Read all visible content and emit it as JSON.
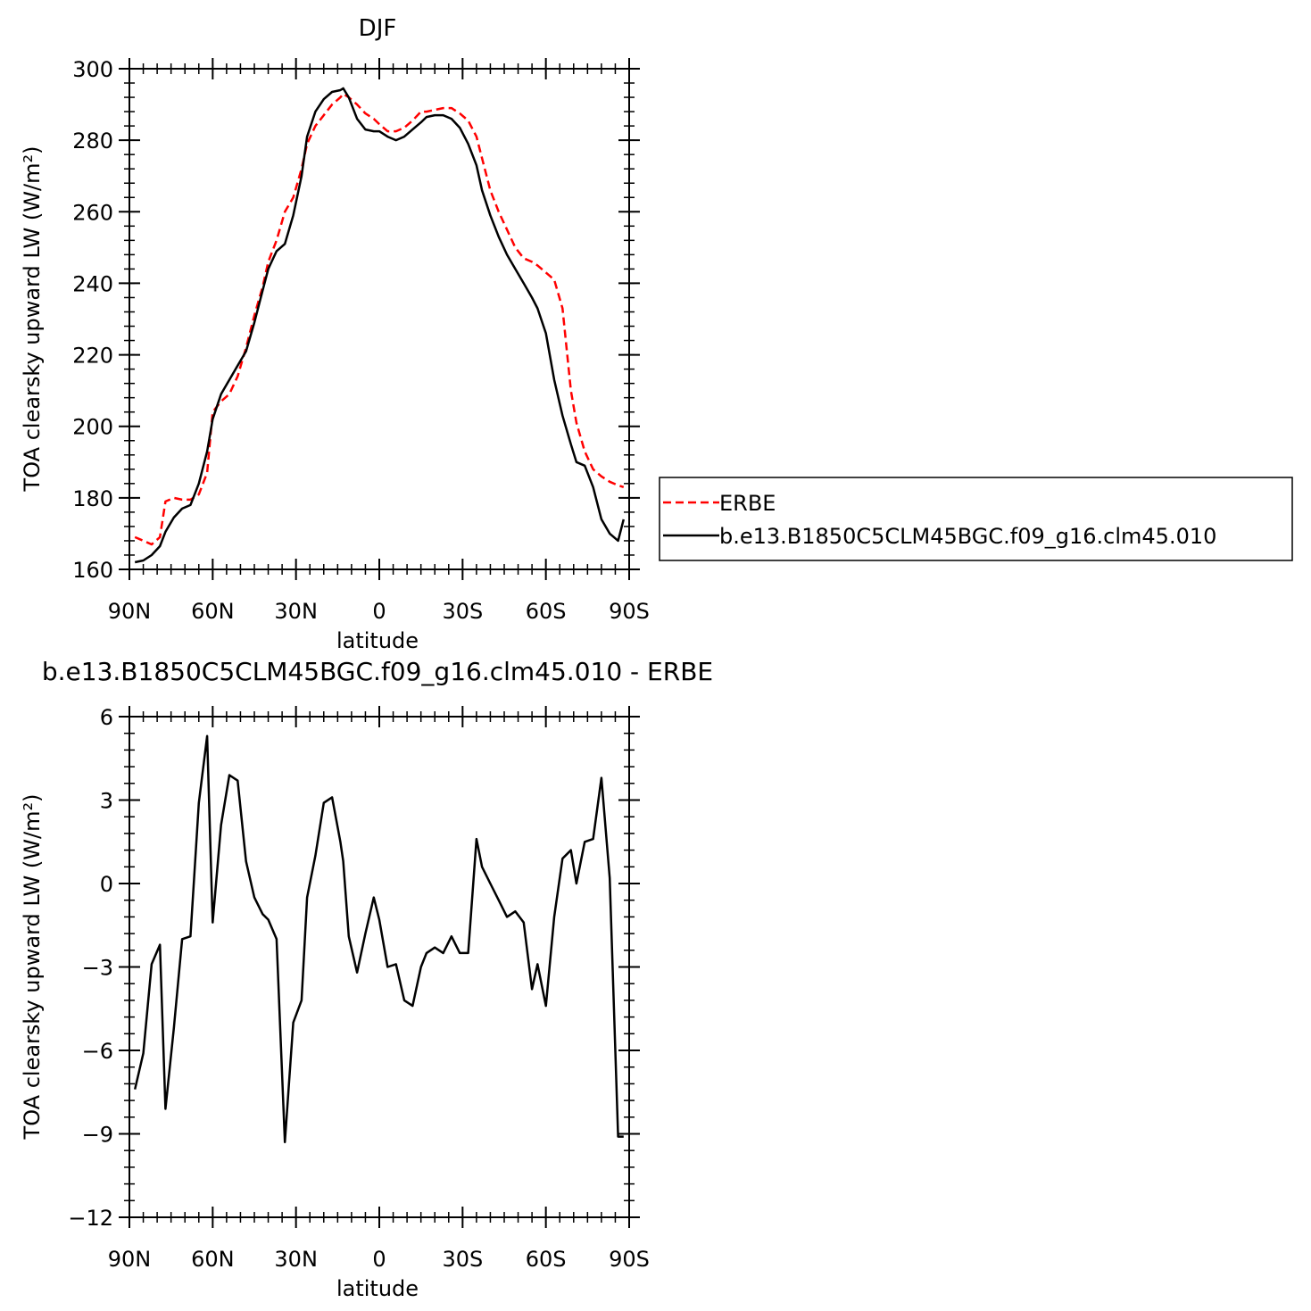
{
  "chart_data": [
    {
      "type": "line",
      "title": "DJF",
      "xlabel": "latitude",
      "ylabel": "TOA clearsky upward LW (W/m²)",
      "xlim": [
        -90,
        90
      ],
      "ylim": [
        160,
        300
      ],
      "yticks": [
        160,
        180,
        200,
        220,
        240,
        260,
        280,
        300
      ],
      "xticks": [
        -90,
        -60,
        -30,
        0,
        30,
        60,
        90
      ],
      "xticklabels": [
        "90N",
        "60N",
        "30N",
        "0",
        "30S",
        "60S",
        "90S"
      ],
      "legend_position": "right",
      "series": [
        {
          "name": "ERBE",
          "color": "#ff0000",
          "dash": "dashed",
          "x": [
            -88,
            -85,
            -82,
            -79,
            -77,
            -74,
            -71,
            -68,
            -65,
            -62,
            -60,
            -57,
            -54,
            -51,
            -48,
            -45,
            -42,
            -40,
            -37,
            -34,
            -31,
            -28,
            -26,
            -23,
            -20,
            -17,
            -14,
            -13,
            -11,
            -8,
            -5,
            -2,
            0,
            3,
            6,
            9,
            12,
            15,
            17,
            20,
            23,
            26,
            29,
            32,
            35,
            37,
            40,
            43,
            46,
            49,
            52,
            55,
            57,
            60,
            63,
            66,
            69,
            71,
            74,
            77,
            80,
            83,
            86,
            88
          ],
          "y": [
            169,
            168,
            167,
            169,
            179,
            180,
            179.5,
            179.5,
            181,
            187,
            204,
            207,
            209,
            214,
            222,
            231,
            239,
            246,
            252,
            260,
            264,
            272,
            279,
            284,
            287,
            290,
            292,
            293,
            292,
            290,
            287.5,
            286,
            284.5,
            282.5,
            282.5,
            283.5,
            285.5,
            288,
            288,
            288.5,
            289,
            289,
            287.5,
            285.5,
            281,
            275,
            266,
            260,
            255,
            250,
            247,
            246,
            245,
            243,
            241,
            233,
            210,
            201,
            193,
            188,
            186,
            184.5,
            183.5,
            183
          ]
        },
        {
          "name": "b.e13.B1850C5CLM45BGC.f09_g16.clm45.010",
          "color": "#000000",
          "dash": "solid",
          "x": [
            -88,
            -85,
            -82,
            -79,
            -77,
            -74,
            -71,
            -68,
            -65,
            -62,
            -60,
            -57,
            -54,
            -51,
            -48,
            -45,
            -42,
            -40,
            -37,
            -34,
            -31,
            -28,
            -26,
            -23,
            -20,
            -17,
            -14,
            -13,
            -11,
            -8,
            -5,
            -2,
            0,
            3,
            6,
            9,
            12,
            15,
            17,
            20,
            23,
            26,
            29,
            32,
            35,
            37,
            40,
            43,
            46,
            49,
            52,
            55,
            57,
            60,
            63,
            66,
            69,
            71,
            74,
            77,
            80,
            83,
            86,
            88
          ],
          "y": [
            162,
            162.5,
            164,
            166.5,
            170.5,
            174.5,
            177,
            178,
            184,
            193,
            202,
            209,
            213,
            217,
            221,
            229,
            238,
            244,
            249,
            251,
            259,
            270,
            281,
            288,
            291.5,
            293.5,
            294,
            294.5,
            292,
            286,
            283,
            282.5,
            282.5,
            281,
            280,
            281,
            283,
            285,
            286.5,
            287,
            287,
            286,
            283.5,
            279,
            273,
            266,
            259,
            253,
            248,
            244,
            240,
            236,
            233,
            226,
            213,
            203,
            195,
            190,
            189,
            183,
            174,
            170,
            168,
            174
          ]
        }
      ]
    },
    {
      "type": "line",
      "title": "b.e13.B1850C5CLM45BGC.f09_g16.clm45.010 - ERBE",
      "xlabel": "latitude",
      "ylabel": "TOA clearsky upward LW (W/m²)",
      "xlim": [
        -90,
        90
      ],
      "ylim": [
        -12,
        6
      ],
      "yticks": [
        -12,
        -9,
        -6,
        -3,
        0,
        3,
        6
      ],
      "yticklabels": [
        "−12",
        "−9",
        "−6",
        "−3",
        "0",
        "3",
        "6"
      ],
      "xticks": [
        -90,
        -60,
        -30,
        0,
        30,
        60,
        90
      ],
      "xticklabels": [
        "90N",
        "60N",
        "30N",
        "0",
        "30S",
        "60S",
        "90S"
      ],
      "series": [
        {
          "color": "#000000",
          "x": [
            -88,
            -85,
            -82,
            -79,
            -77,
            -74,
            -71,
            -68,
            -65,
            -62,
            -60,
            -57,
            -54,
            -51,
            -48,
            -45,
            -42,
            -40,
            -37,
            -34,
            -31,
            -28,
            -26,
            -23,
            -20,
            -17,
            -14,
            -13,
            -11,
            -8,
            -5,
            -2,
            0,
            3,
            6,
            9,
            12,
            15,
            17,
            20,
            23,
            26,
            29,
            32,
            35,
            37,
            40,
            43,
            46,
            49,
            52,
            55,
            57,
            60,
            63,
            66,
            69,
            71,
            74,
            77,
            80,
            83,
            86,
            88
          ],
          "y": [
            -7.4,
            -6.1,
            -2.9,
            -2.2,
            -8.1,
            -5.2,
            -2.0,
            -1.9,
            2.9,
            5.3,
            -1.4,
            2.1,
            3.9,
            3.7,
            0.8,
            -0.5,
            -1.1,
            -1.3,
            -2.0,
            -9.3,
            -5.0,
            -4.2,
            -0.5,
            1.0,
            2.9,
            3.1,
            1.5,
            0.8,
            -1.9,
            -3.2,
            -1.8,
            -0.5,
            -1.3,
            -3.0,
            -2.9,
            -4.2,
            -4.4,
            -3.0,
            -2.5,
            -2.3,
            -2.5,
            -1.9,
            -2.5,
            -2.5,
            1.6,
            0.6,
            0.0,
            -0.6,
            -1.2,
            -1.0,
            -1.4,
            -3.8,
            -2.9,
            -4.4,
            -1.2,
            0.9,
            1.2,
            0.0,
            1.5,
            1.6,
            3.8,
            0.2,
            -9.1,
            -9.1
          ]
        }
      ]
    }
  ]
}
